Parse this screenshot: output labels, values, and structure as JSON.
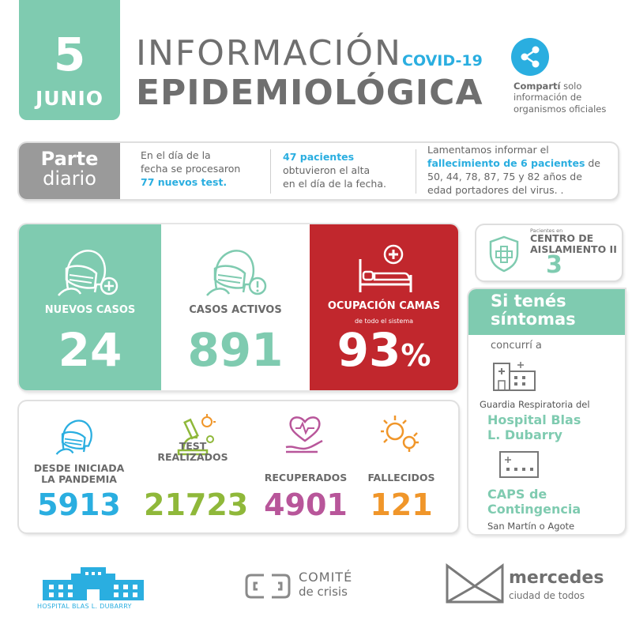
{
  "header": {
    "day": "5",
    "month": "JUNIO",
    "title_line1": "INFORMACIÓN",
    "title_tag": "COVID-19",
    "title_line2": "EPIDEMIOLÓGICA",
    "share_bold": "Compartí",
    "share_rest_1": " solo",
    "share_rest_2": "información de",
    "share_rest_3": "organismos oficiales"
  },
  "parte": {
    "label_1": "Parte",
    "label_2": "diario",
    "col1_a": "En el día de la",
    "col1_b": "fecha se procesaron",
    "col1_hl": "77 nuevos test.",
    "col2_hl": "47 pacientes",
    "col2_b": "obtuvieron el alta",
    "col2_c": "en el día de la fecha.",
    "col3_a": "Lamentamos informar el",
    "col3_hl": "fallecimiento de 6 pacientes",
    "col3_hl_after": " de",
    "col3_c": "50, 44, 78, 87, 75 y 82 años de",
    "col3_d": "edad portadores del virus. ."
  },
  "stats": {
    "nuevos_label": "NUEVOS  CASOS",
    "nuevos_value": "24",
    "activos_label": "CASOS ACTIVOS",
    "activos_value": "891",
    "camas_label": "OCUPACIÓN CAMAS",
    "camas_sub": "de todo el sistema",
    "camas_value": "93",
    "camas_unit": "%"
  },
  "low_stats": {
    "pandemia_label_1": "DESDE INICIADA",
    "pandemia_label_2": "LA PANDEMIA",
    "pandemia_value": "5913",
    "test_label_1": "TEST",
    "test_label_2": "REALIZADOS",
    "test_value": "21723",
    "recuperados_label": "RECUPERADOS",
    "recuperados_value": "4901",
    "fallecidos_label": "FALLECIDOS",
    "fallecidos_value": "121"
  },
  "centro": {
    "small": "Pacientes en",
    "title_1": "CENTRO DE",
    "title_2": "AISLAMIENTO II",
    "value": "3"
  },
  "sintomas": {
    "head_1": "Si tenés",
    "head_2": "síntomas",
    "concurri": "concurrí a",
    "guardia": "Guardia Respiratoria del",
    "hospital_1": "Hospital Blas",
    "hospital_2": "L. Dubarry",
    "caps_1": "CAPS de",
    "caps_2": "Contingencia",
    "caps_addr": "San Martín o Agote"
  },
  "footer": {
    "hospital": "HOSPITAL BLAS L. DUBARRY",
    "comite_1": "COMITÉ",
    "comite_2": "de crisis",
    "merc_1": "mercedes",
    "merc_2": "ciudad de todos"
  },
  "colors": {
    "green": "#7fcbb0",
    "blue": "#2aaee0",
    "red": "#c1272d",
    "gray": "#9a9a9a",
    "purple": "#b8569a",
    "olive": "#8fb83a",
    "orange": "#f0962a"
  }
}
